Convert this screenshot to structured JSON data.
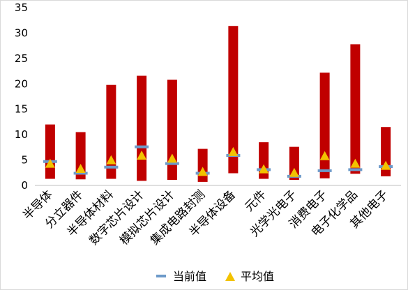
{
  "chart_data": {
    "type": "bar",
    "categories": [
      "半导体",
      "分立器件",
      "半导体材料",
      "数字芯片设计",
      "模拟芯片设计",
      "集成电路封测",
      "半导体设备",
      "元件",
      "光学光电子",
      "消费电子",
      "电子化学品",
      "其他电子"
    ],
    "range_low": [
      1.3,
      1.2,
      1.3,
      0.9,
      1.1,
      0.7,
      2.4,
      1.3,
      1.1,
      1.4,
      2.3,
      1.8
    ],
    "range_high": [
      12.0,
      10.5,
      19.8,
      21.6,
      20.8,
      7.2,
      31.4,
      8.5,
      7.6,
      22.2,
      27.8,
      11.5
    ],
    "series": [
      {
        "name": "当前值",
        "values": [
          4.7,
          2.4,
          3.6,
          7.6,
          4.3,
          2.4,
          5.9,
          3.1,
          1.8,
          2.9,
          3.1,
          3.7
        ]
      },
      {
        "name": "平均值",
        "values": [
          4.3,
          3.3,
          5.0,
          5.9,
          5.3,
          2.7,
          6.6,
          3.2,
          2.5,
          5.8,
          4.3,
          3.9
        ]
      }
    ],
    "yticks": [
      0,
      5,
      10,
      15,
      20,
      25,
      30,
      35
    ],
    "ylim": [
      0,
      35
    ],
    "grid": false,
    "legend_position": "bottom",
    "colors": {
      "range_bar": "#c00000",
      "current": "#6d9ac9",
      "average": "#f2c200"
    }
  }
}
